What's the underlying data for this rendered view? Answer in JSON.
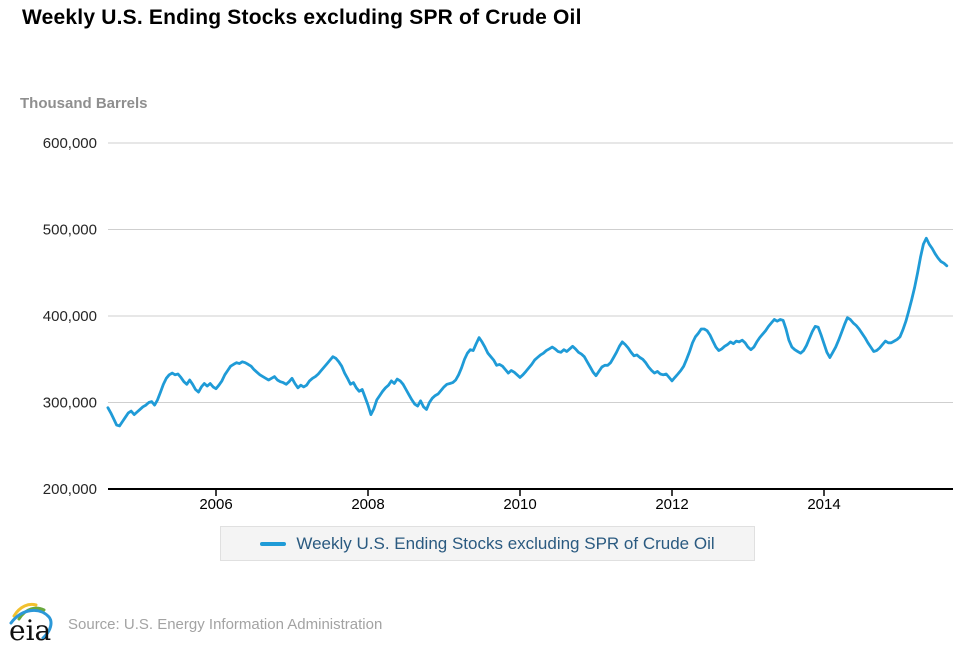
{
  "header": {
    "title": "Weekly U.S. Ending Stocks excluding SPR of Crude Oil"
  },
  "footer": {
    "logo": "eia-logo",
    "logo_text": "eia",
    "source": "Source: U.S. Energy Information Administration"
  },
  "legend": {
    "position": "bottom-center",
    "items": [
      {
        "label": "Weekly U.S. Ending Stocks excluding SPR of Crude Oil",
        "swatch_color": "#1f9bd7"
      }
    ]
  },
  "colors": {
    "line": "#1f9bd7",
    "gridline": "#cfcfcf",
    "axis": "#000000",
    "legend_text": "#2a5a80",
    "legend_bg": "#f4f4f4",
    "muted_text": "#8f8f8f",
    "logo_yellow": "#f2c12e",
    "logo_green": "#69a83d",
    "logo_blue": "#2b98d8"
  },
  "chart_data": {
    "type": "line",
    "title": "Weekly U.S. Ending Stocks excluding SPR of Crude Oil",
    "ylabel": "Thousand Barrels",
    "xlabel": "",
    "grid": "horizontal-only",
    "ylim": [
      200000,
      600000
    ],
    "y_ticks": [
      {
        "label": "600,000",
        "value": 600000
      },
      {
        "label": "500,000",
        "value": 500000
      },
      {
        "label": "400,000",
        "value": 400000
      },
      {
        "label": "300,000",
        "value": 300000
      },
      {
        "label": "200,000",
        "value": 200000
      }
    ],
    "x_ticks": [
      {
        "label": "2006",
        "value": 2006
      },
      {
        "label": "2008",
        "value": 2008
      },
      {
        "label": "2010",
        "value": 2010
      },
      {
        "label": "2012",
        "value": 2012
      },
      {
        "label": "2014",
        "value": 2014
      }
    ],
    "series": [
      {
        "name": "Weekly U.S. Ending Stocks excluding SPR of Crude Oil",
        "unit": "thousand barrels",
        "x_unit": "decimal year (approx. biweekly samples, mid-2004 to late 2015)",
        "x_start": 2004.577,
        "x_step": 0.038462,
        "values": [
          294000,
          288000,
          281000,
          274000,
          273000,
          278000,
          283000,
          288000,
          290000,
          286000,
          289000,
          292000,
          295000,
          297000,
          300000,
          301000,
          297000,
          303000,
          312000,
          321000,
          328000,
          332000,
          334000,
          332000,
          333000,
          329000,
          324000,
          321000,
          326000,
          321000,
          315000,
          312000,
          318000,
          322000,
          319000,
          322000,
          318000,
          316000,
          320000,
          325000,
          332000,
          337000,
          342000,
          344000,
          346000,
          345000,
          347000,
          346000,
          344000,
          342000,
          338000,
          335000,
          332000,
          330000,
          328000,
          326000,
          328000,
          330000,
          326000,
          324000,
          323000,
          321000,
          324000,
          328000,
          322000,
          317000,
          320000,
          318000,
          320000,
          325000,
          328000,
          330000,
          333000,
          337000,
          341000,
          345000,
          349000,
          353000,
          351000,
          347000,
          342000,
          334000,
          328000,
          321000,
          323000,
          317000,
          313000,
          315000,
          306000,
          297000,
          286000,
          293000,
          303000,
          308000,
          313000,
          317000,
          320000,
          325000,
          322000,
          327000,
          325000,
          321000,
          315000,
          309000,
          303000,
          298000,
          296000,
          302000,
          295000,
          292000,
          300000,
          305000,
          308000,
          310000,
          314000,
          318000,
          321000,
          322000,
          323000,
          326000,
          332000,
          340000,
          350000,
          357000,
          361000,
          360000,
          368000,
          375000,
          370000,
          364000,
          357000,
          353000,
          349000,
          343000,
          344000,
          342000,
          338000,
          334000,
          337000,
          335000,
          332000,
          329000,
          332000,
          336000,
          340000,
          344000,
          349000,
          352000,
          355000,
          357000,
          360000,
          362000,
          364000,
          362000,
          359000,
          358000,
          361000,
          359000,
          362000,
          365000,
          362000,
          358000,
          356000,
          353000,
          347000,
          341000,
          335000,
          331000,
          336000,
          341000,
          343000,
          343000,
          346000,
          352000,
          358000,
          365000,
          370000,
          367000,
          363000,
          358000,
          354000,
          355000,
          352000,
          350000,
          346000,
          341000,
          337000,
          334000,
          336000,
          333000,
          332000,
          333000,
          329000,
          325000,
          329000,
          333000,
          337000,
          342000,
          350000,
          359000,
          369000,
          376000,
          380000,
          385000,
          385000,
          383000,
          378000,
          371000,
          364000,
          360000,
          362000,
          365000,
          367000,
          370000,
          368000,
          371000,
          370000,
          372000,
          369000,
          364000,
          361000,
          364000,
          370000,
          375000,
          379000,
          383000,
          388000,
          392000,
          396000,
          394000,
          396000,
          395000,
          385000,
          372000,
          364000,
          361000,
          359000,
          357000,
          360000,
          366000,
          374000,
          382000,
          388000,
          387000,
          378000,
          368000,
          358000,
          352000,
          358000,
          364000,
          372000,
          381000,
          390000,
          398000,
          396000,
          392000,
          389000,
          385000,
          380000,
          375000,
          369000,
          364000,
          359000,
          360000,
          363000,
          367000,
          371000,
          369000,
          369000,
          371000,
          373000,
          376000,
          384000,
          394000,
          406000,
          419000,
          433000,
          450000,
          468000,
          483000,
          490000,
          483000,
          478000,
          472000,
          467000,
          463000,
          461000,
          458000
        ]
      }
    ]
  }
}
